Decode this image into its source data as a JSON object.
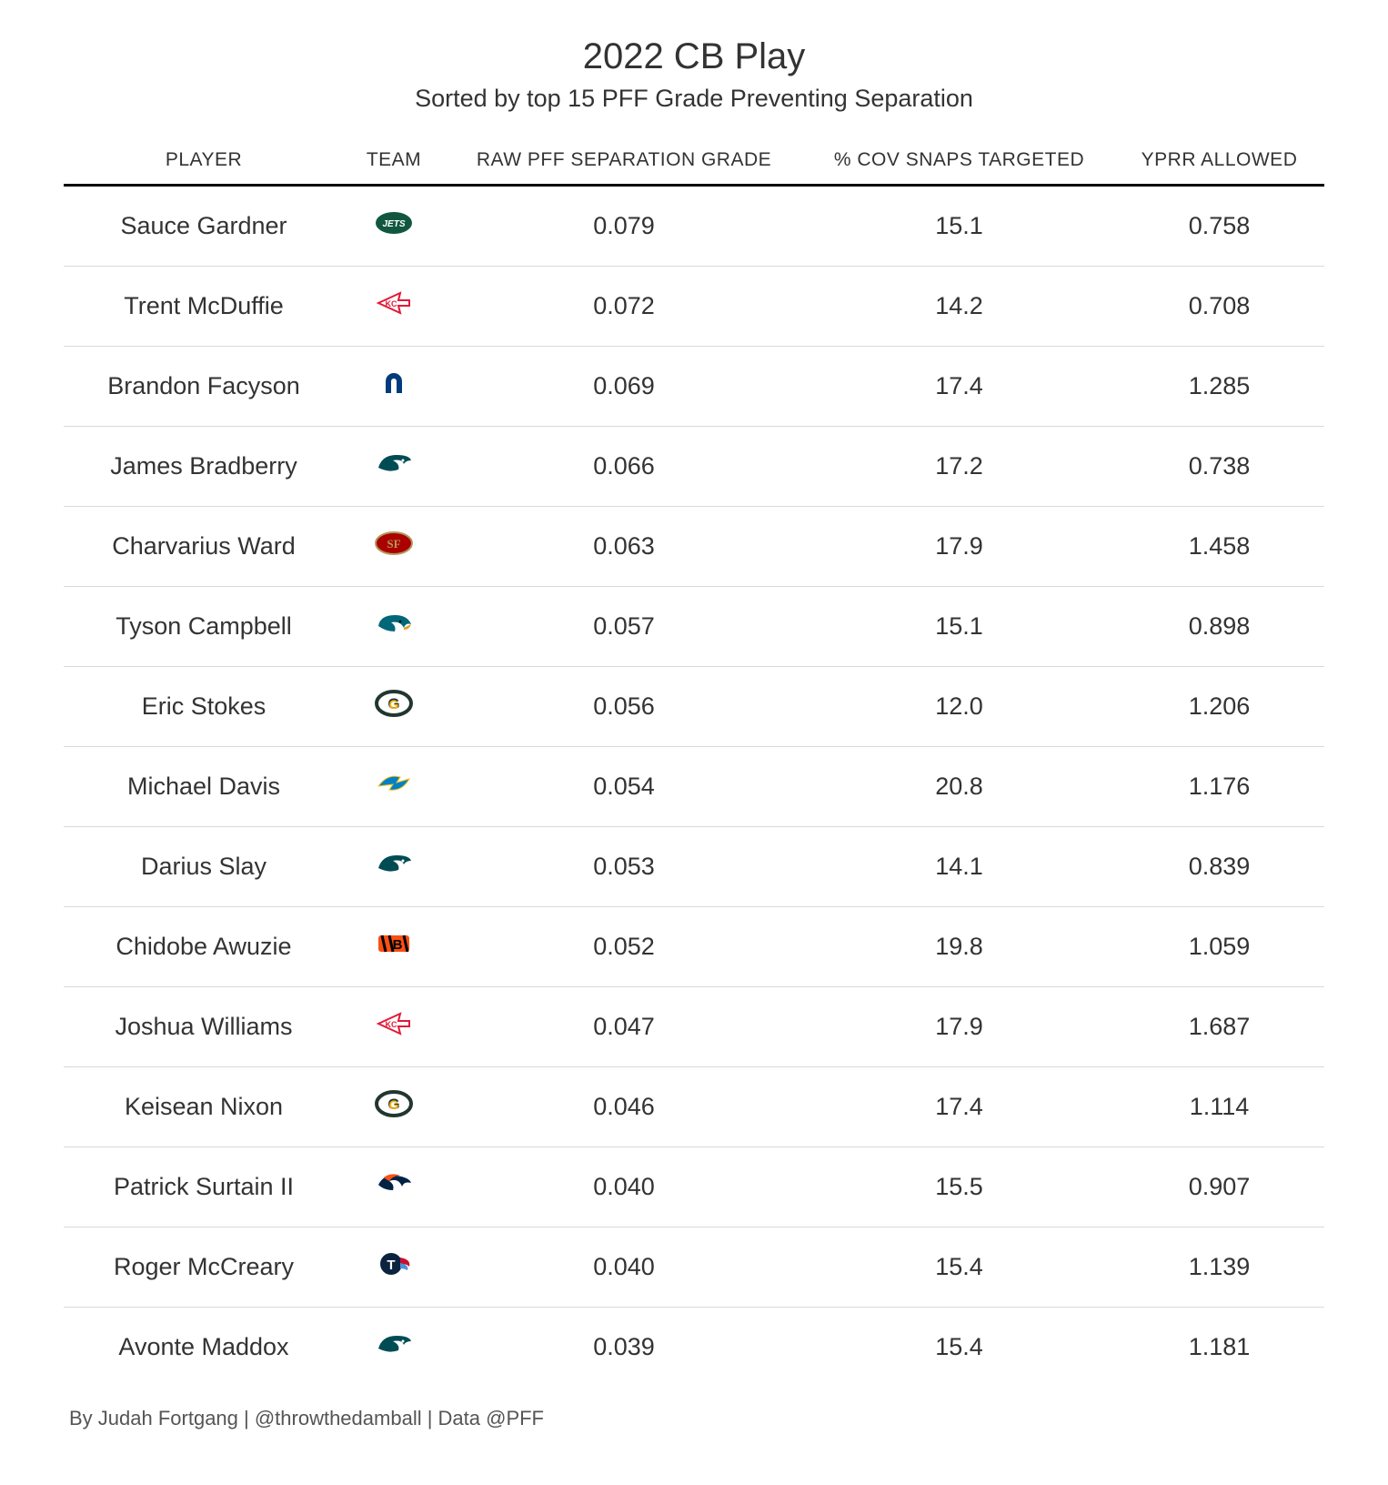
{
  "title": "2022 CB Play",
  "subtitle": "Sorted by top 15 PFF Grade Preventing Separation",
  "columns": {
    "player": "PLAYER",
    "team": "TEAM",
    "sep": "RAW PFF SEPARATION GRADE",
    "cov": "% COV SNAPS TARGETED",
    "yprr": "YPRR ALLOWED"
  },
  "rows": [
    {
      "player": "Sauce Gardner",
      "team_logo": "nyj",
      "sep": "0.079",
      "cov": "15.1",
      "yprr": "0.758"
    },
    {
      "player": "Trent McDuffie",
      "team_logo": "kc",
      "sep": "0.072",
      "cov": "14.2",
      "yprr": "0.708"
    },
    {
      "player": "Brandon Facyson",
      "team_logo": "ind",
      "sep": "0.069",
      "cov": "17.4",
      "yprr": "1.285"
    },
    {
      "player": "James Bradberry",
      "team_logo": "phi",
      "sep": "0.066",
      "cov": "17.2",
      "yprr": "0.738"
    },
    {
      "player": "Charvarius Ward",
      "team_logo": "sf",
      "sep": "0.063",
      "cov": "17.9",
      "yprr": "1.458"
    },
    {
      "player": "Tyson Campbell",
      "team_logo": "jax",
      "sep": "0.057",
      "cov": "15.1",
      "yprr": "0.898"
    },
    {
      "player": "Eric Stokes",
      "team_logo": "gb",
      "sep": "0.056",
      "cov": "12.0",
      "yprr": "1.206"
    },
    {
      "player": "Michael Davis",
      "team_logo": "lac",
      "sep": "0.054",
      "cov": "20.8",
      "yprr": "1.176"
    },
    {
      "player": "Darius Slay",
      "team_logo": "phi",
      "sep": "0.053",
      "cov": "14.1",
      "yprr": "0.839"
    },
    {
      "player": "Chidobe Awuzie",
      "team_logo": "cin",
      "sep": "0.052",
      "cov": "19.8",
      "yprr": "1.059"
    },
    {
      "player": "Joshua Williams",
      "team_logo": "kc",
      "sep": "0.047",
      "cov": "17.9",
      "yprr": "1.687"
    },
    {
      "player": "Keisean Nixon",
      "team_logo": "gb",
      "sep": "0.046",
      "cov": "17.4",
      "yprr": "1.114"
    },
    {
      "player": "Patrick Surtain II",
      "team_logo": "den",
      "sep": "0.040",
      "cov": "15.5",
      "yprr": "0.907"
    },
    {
      "player": "Roger McCreary",
      "team_logo": "ten",
      "sep": "0.040",
      "cov": "15.4",
      "yprr": "1.139"
    },
    {
      "player": "Avonte Maddox",
      "team_logo": "phi",
      "sep": "0.039",
      "cov": "15.4",
      "yprr": "1.181"
    }
  ],
  "footnote": "By Judah Fortgang | @throwthedamball | Data @PFF",
  "logo_colors": {
    "nyj": {
      "bg": "#115740",
      "fg": "#ffffff"
    },
    "kc": {
      "bg": "#ffffff",
      "fg": "#e31837",
      "stroke": "#e31837"
    },
    "ind": {
      "bg": "#ffffff",
      "fg": "#003b7b"
    },
    "phi": {
      "bg": "#ffffff",
      "fg": "#004c54"
    },
    "sf": {
      "bg": "#aa0000",
      "fg": "#b3995d"
    },
    "jax": {
      "bg": "#ffffff",
      "fg": "#006778",
      "accent": "#d7a22a"
    },
    "gb": {
      "bg": "#ffffff",
      "fg": "#203731",
      "accent": "#ffb612"
    },
    "lac": {
      "bg": "#ffffff",
      "fg": "#0080c6",
      "accent": "#ffc20e"
    },
    "cin": {
      "bg": "#fb4f14",
      "fg": "#000000"
    },
    "den": {
      "bg": "#ffffff",
      "fg": "#002244",
      "accent": "#fb4f14"
    },
    "ten": {
      "bg": "#0c2340",
      "fg": "#4b92db",
      "accent": "#c8102e"
    }
  }
}
